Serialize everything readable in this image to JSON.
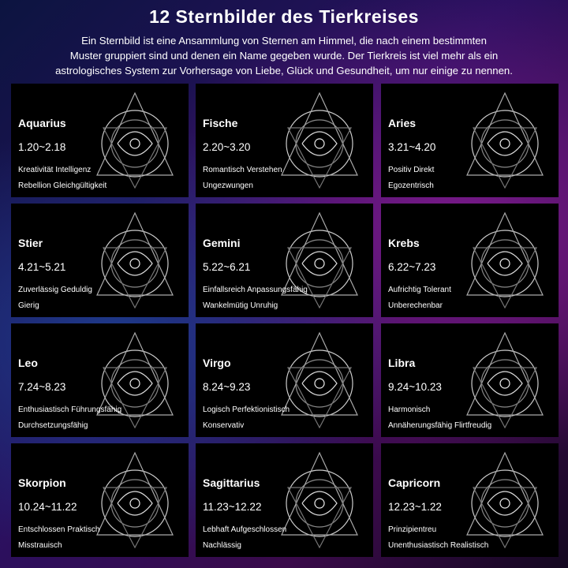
{
  "header": {
    "title": "12 Sternbilder des Tierkreises",
    "intro": [
      "Ein Sternbild ist eine Ansammlung von Sternen am Himmel, die nach einem bestimmten",
      "Muster gruppiert sind und denen ein Name gegeben wurde. Der Tierkreis ist viel mehr als ein",
      "astrologisches System zur Vorhersage von Liebe, Glück und Gesundheit, um nur einige zu nennen."
    ]
  },
  "signs": [
    {
      "name": "Aquarius",
      "date": "1.20~2.18",
      "traits": [
        "Kreativität Intelligenz",
        "Rebellion Gleichgültigkeit"
      ],
      "icon": "aquarius-icon"
    },
    {
      "name": "Fische",
      "date": "2.20~3.20",
      "traits": [
        "Romantisch Verstehen",
        "Ungezwungen"
      ],
      "icon": "pisces-icon"
    },
    {
      "name": "Aries",
      "date": "3.21~4.20",
      "traits": [
        "Positiv Direkt",
        "Egozentrisch"
      ],
      "icon": "aries-icon"
    },
    {
      "name": "Stier",
      "date": "4.21~5.21",
      "traits": [
        "Zuverlässig Geduldig",
        "Gierig"
      ],
      "icon": "taurus-icon"
    },
    {
      "name": "Gemini",
      "date": "5.22~6.21",
      "traits": [
        "Einfallsreich Anpassungsfähig",
        "Wankelmütig Unruhig"
      ],
      "icon": "gemini-icon"
    },
    {
      "name": "Krebs",
      "date": "6.22~7.23",
      "traits": [
        "Aufrichtig Tolerant",
        "Unberechenbar"
      ],
      "icon": "cancer-icon"
    },
    {
      "name": "Leo",
      "date": "7.24~8.23",
      "traits": [
        "Enthusiastisch Führungsfähig",
        "Durchsetzungsfähig"
      ],
      "icon": "leo-icon"
    },
    {
      "name": "Virgo",
      "date": "8.24~9.23",
      "traits": [
        "Logisch Perfektionistisch",
        "Konservativ"
      ],
      "icon": "virgo-icon"
    },
    {
      "name": "Libra",
      "date": "9.24~10.23",
      "traits": [
        "Harmonisch",
        "Annäherungsfähig Flirtfreudig"
      ],
      "icon": "libra-icon"
    },
    {
      "name": "Skorpion",
      "date": "10.24~11.22",
      "traits": [
        "Entschlossen Praktisch",
        "Misstrauisch"
      ],
      "icon": "scorpio-icon"
    },
    {
      "name": "Sagittarius",
      "date": "11.23~12.22",
      "traits": [
        "Lebhaft Aufgeschlossen",
        "Nachlässig"
      ],
      "icon": "sagittarius-icon"
    },
    {
      "name": "Capricorn",
      "date": "12.23~1.22",
      "traits": [
        "Prinzipientreu",
        "Unenthusiastisch Realistisch"
      ],
      "icon": "capricorn-icon"
    }
  ]
}
